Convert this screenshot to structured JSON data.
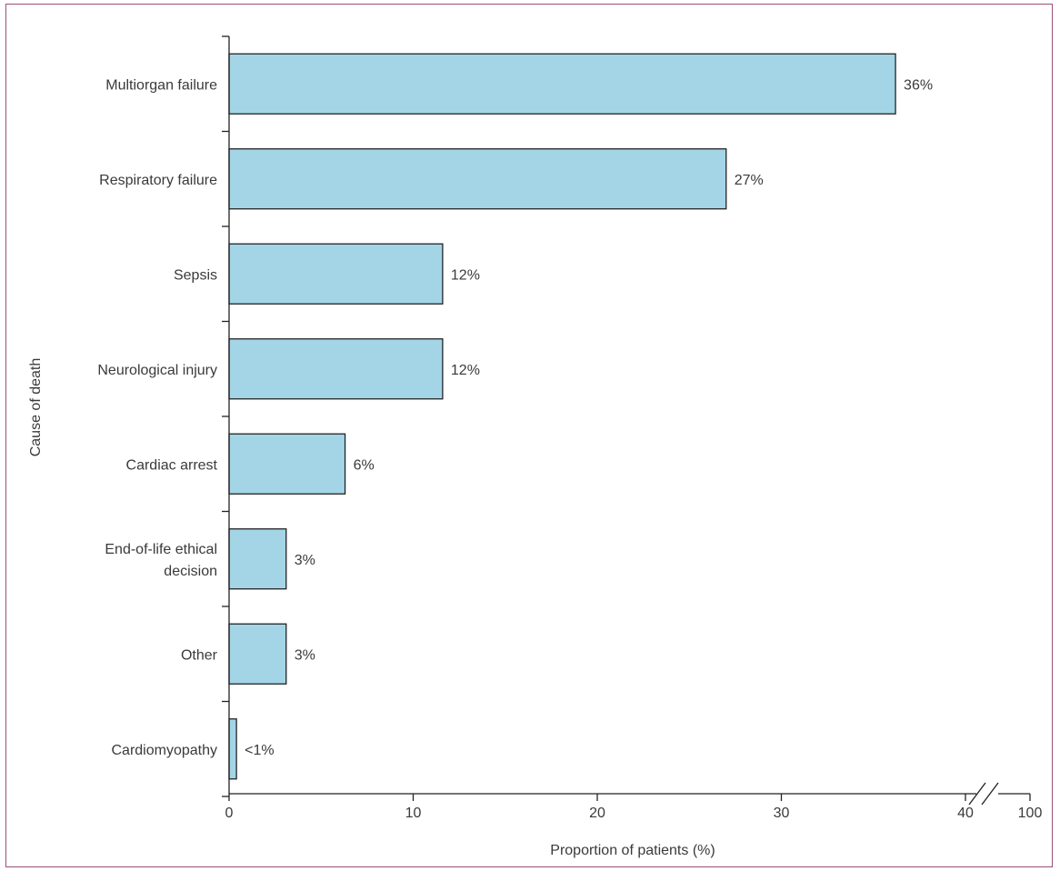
{
  "chart_data": {
    "type": "bar",
    "orientation": "horizontal",
    "categories": [
      [
        "Multiorgan failure"
      ],
      [
        "Respiratory failure"
      ],
      [
        "Sepsis"
      ],
      [
        "Neurological injury"
      ],
      [
        "Cardiac arrest"
      ],
      [
        "End-of-life ethical",
        "decision"
      ],
      [
        "Other"
      ],
      [
        "Cardiomyopathy"
      ]
    ],
    "values": [
      36.2,
      27.0,
      11.6,
      11.6,
      6.3,
      3.1,
      3.1,
      0.4
    ],
    "value_labels": [
      "36%",
      "27%",
      "12%",
      "12%",
      "6%",
      "3%",
      "3%",
      "<1%"
    ],
    "xlabel": "Proportion of patients (%)",
    "ylabel": "Cause of death",
    "xlim": [
      0,
      40
    ],
    "x_ticks": [
      0,
      10,
      20,
      30,
      40
    ],
    "x_tick_labels": [
      "0",
      "10",
      "20",
      "30",
      "40",
      "100"
    ],
    "axis_break": "between 40 and 100",
    "grid": false,
    "colors": {
      "bar_fill": "#a3d5e7",
      "bar_stroke": "#222222",
      "frame": "#9b4f7a"
    }
  }
}
